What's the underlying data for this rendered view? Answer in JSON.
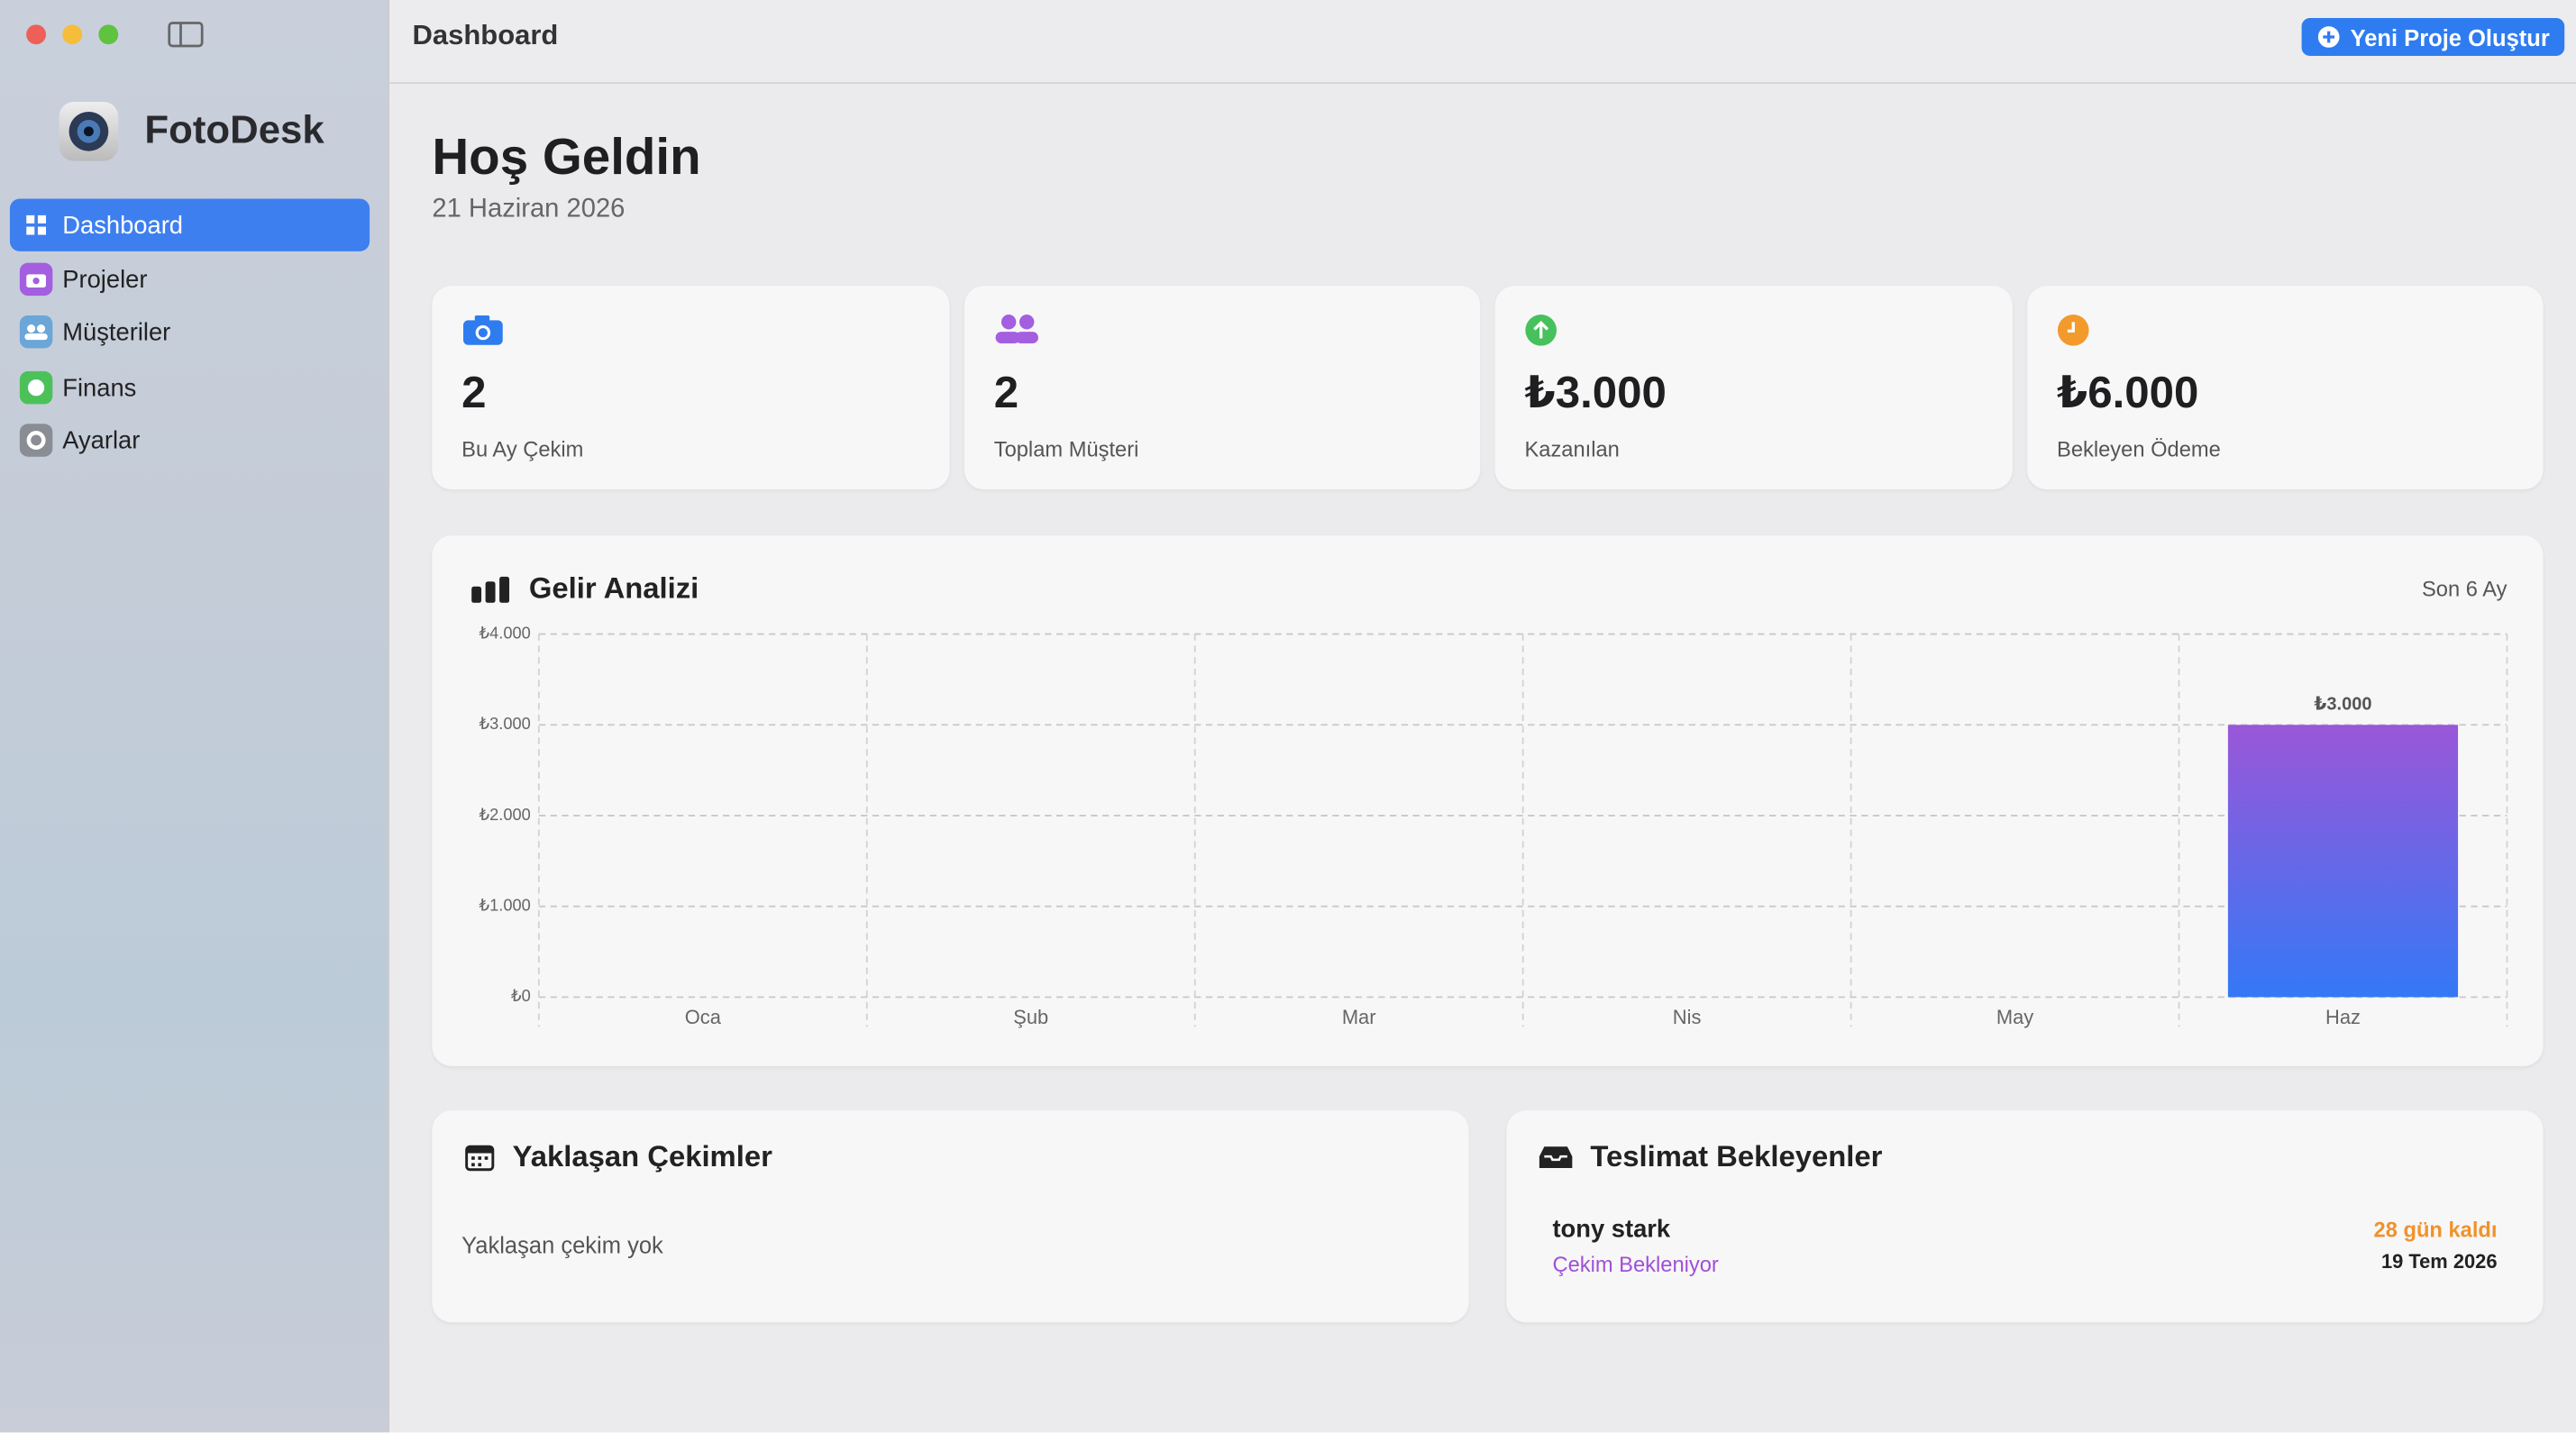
{
  "sidebar": {
    "app_name": "FotoDesk",
    "items": [
      "Dashboard",
      "Projeler",
      "Müşteriler",
      "Finans",
      "Ayarlar"
    ]
  },
  "header": {
    "title": "Dashboard",
    "button": "Yeni Proje Oluştur"
  },
  "welcome": {
    "title": "Hoş Geldin",
    "date": "21 Haziran 2026"
  },
  "stats": [
    {
      "value": "2",
      "label": "Bu Ay Çekim"
    },
    {
      "value": "2",
      "label": "Toplam Müşteri"
    },
    {
      "value": "₺3.000",
      "label": "Kazanılan"
    },
    {
      "value": "₺6.000",
      "label": "Bekleyen Ödeme"
    }
  ],
  "chart_data": {
    "type": "bar",
    "title": "Gelir Analizi",
    "subtitle": "Son 6 Ay",
    "categories": [
      "Oca",
      "Şub",
      "Mar",
      "Nis",
      "May",
      "Haz"
    ],
    "values": [
      0,
      0,
      0,
      0,
      0,
      3000
    ],
    "value_labels": [
      null,
      null,
      null,
      null,
      null,
      "₺3.000"
    ],
    "color": [
      "#9a57d8",
      "#3478f6"
    ],
    "ylim": [
      0,
      4000
    ],
    "yticks": [
      {
        "value": 0,
        "label": "₺0"
      },
      {
        "value": 1000,
        "label": "₺1.000"
      },
      {
        "value": 2000,
        "label": "₺2.000"
      },
      {
        "value": 3000,
        "label": "₺3.000"
      },
      {
        "value": 4000,
        "label": "₺4.000"
      }
    ],
    "grid": true
  },
  "upcoming": {
    "title": "Yaklaşan Çekimler",
    "empty": "Yaklaşan çekim yok"
  },
  "deliveries": {
    "title": "Teslimat Bekleyenler",
    "items": [
      {
        "client": "tony stark",
        "status": "Çekim Bekleniyor",
        "remaining": "28 gün kaldı",
        "date": "19 Tem 2026"
      }
    ]
  }
}
